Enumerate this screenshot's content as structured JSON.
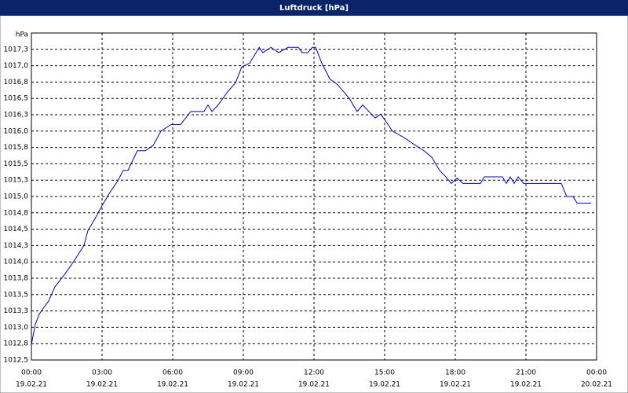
{
  "chart_data": {
    "type": "line",
    "title": "Luftdruck [hPa]",
    "y_label": "hPa",
    "x": [
      0,
      0.17,
      0.33,
      0.5,
      0.73,
      1,
      1.33,
      1.67,
      2,
      2.23,
      2.4,
      2.67,
      3,
      3.33,
      3.67,
      3.9,
      4.1,
      4.5,
      4.83,
      5.17,
      5.5,
      5.93,
      6.33,
      6.77,
      7.33,
      7.5,
      7.67,
      7.93,
      8.33,
      8.67,
      8.93,
      9.27,
      9.67,
      9.83,
      10.17,
      10.5,
      10.9,
      11.33,
      11.5,
      11.73,
      11.93,
      12.07,
      12.33,
      12.67,
      13,
      13.5,
      13.83,
      14.07,
      14.33,
      14.6,
      14.83,
      15.07,
      15.33,
      15.83,
      16.23,
      16.67,
      17,
      17.33,
      17.6,
      17.83,
      18.07,
      18.33,
      19.07,
      19.23,
      20,
      20.17,
      20.33,
      20.5,
      20.67,
      20.9,
      22.5,
      22.73,
      23,
      23.17,
      23.77
    ],
    "series": [
      {
        "name": "Luftdruck",
        "color": "#0000c0",
        "values": [
          1012.74,
          1013.05,
          1013.2,
          1013.29,
          1013.4,
          1013.62,
          1013.77,
          1013.94,
          1014.12,
          1014.25,
          1014.48,
          1014.64,
          1014.86,
          1015.06,
          1015.24,
          1015.4,
          1015.4,
          1015.7,
          1015.7,
          1015.78,
          1016.0,
          1016.1,
          1016.1,
          1016.3,
          1016.3,
          1016.4,
          1016.3,
          1016.4,
          1016.6,
          1016.74,
          1016.98,
          1017.04,
          1017.28,
          1017.2,
          1017.28,
          1017.2,
          1017.28,
          1017.28,
          1017.2,
          1017.2,
          1017.28,
          1017.28,
          1017.04,
          1016.8,
          1016.71,
          1016.5,
          1016.3,
          1016.4,
          1016.3,
          1016.2,
          1016.26,
          1016.14,
          1016.0,
          1015.9,
          1015.8,
          1015.7,
          1015.6,
          1015.4,
          1015.3,
          1015.2,
          1015.28,
          1015.2,
          1015.2,
          1015.3,
          1015.3,
          1015.2,
          1015.3,
          1015.2,
          1015.3,
          1015.2,
          1015.2,
          1015.0,
          1015.0,
          1014.9,
          1014.9
        ]
      }
    ],
    "xlim": [
      0,
      24
    ],
    "xticks": [
      {
        "value": 0,
        "label": "00:00"
      },
      {
        "value": 3,
        "label": "03:00"
      },
      {
        "value": 6,
        "label": "06:00"
      },
      {
        "value": 9,
        "label": "09:00"
      },
      {
        "value": 12,
        "label": "12:00"
      },
      {
        "value": 15,
        "label": "15:00"
      },
      {
        "value": 18,
        "label": "18:00"
      },
      {
        "value": 21,
        "label": "21:00"
      },
      {
        "value": 24,
        "label": "00:00"
      }
    ],
    "xtick_dates": [
      "19.02.21",
      "19.02.21",
      "19.02.21",
      "19.02.21",
      "19.02.21",
      "19.02.21",
      "19.02.21",
      "19.02.21",
      "20.02.21"
    ],
    "ylim": [
      1012.5,
      1017.5
    ],
    "yticks": [
      {
        "value": 1012.5,
        "label": "1012,5"
      },
      {
        "value": 1012.75,
        "label": "1012,8"
      },
      {
        "value": 1013,
        "label": "1013,0"
      },
      {
        "value": 1013.25,
        "label": "1013,3"
      },
      {
        "value": 1013.5,
        "label": "1013,5"
      },
      {
        "value": 1013.75,
        "label": "1013,8"
      },
      {
        "value": 1014,
        "label": "1014,0"
      },
      {
        "value": 1014.25,
        "label": "1014,3"
      },
      {
        "value": 1014.5,
        "label": "1014,5"
      },
      {
        "value": 1014.75,
        "label": "1014,8"
      },
      {
        "value": 1015,
        "label": "1015,0"
      },
      {
        "value": 1015.25,
        "label": "1015,3"
      },
      {
        "value": 1015.5,
        "label": "1015,5"
      },
      {
        "value": 1015.75,
        "label": "1015,8"
      },
      {
        "value": 1016,
        "label": "1016,0"
      },
      {
        "value": 1016.25,
        "label": "1016,3"
      },
      {
        "value": 1016.5,
        "label": "1016,5"
      },
      {
        "value": 1016.75,
        "label": "1016,8"
      },
      {
        "value": 1017,
        "label": "1017,0"
      },
      {
        "value": 1017.25,
        "label": "1017,3"
      }
    ],
    "grid": true
  }
}
